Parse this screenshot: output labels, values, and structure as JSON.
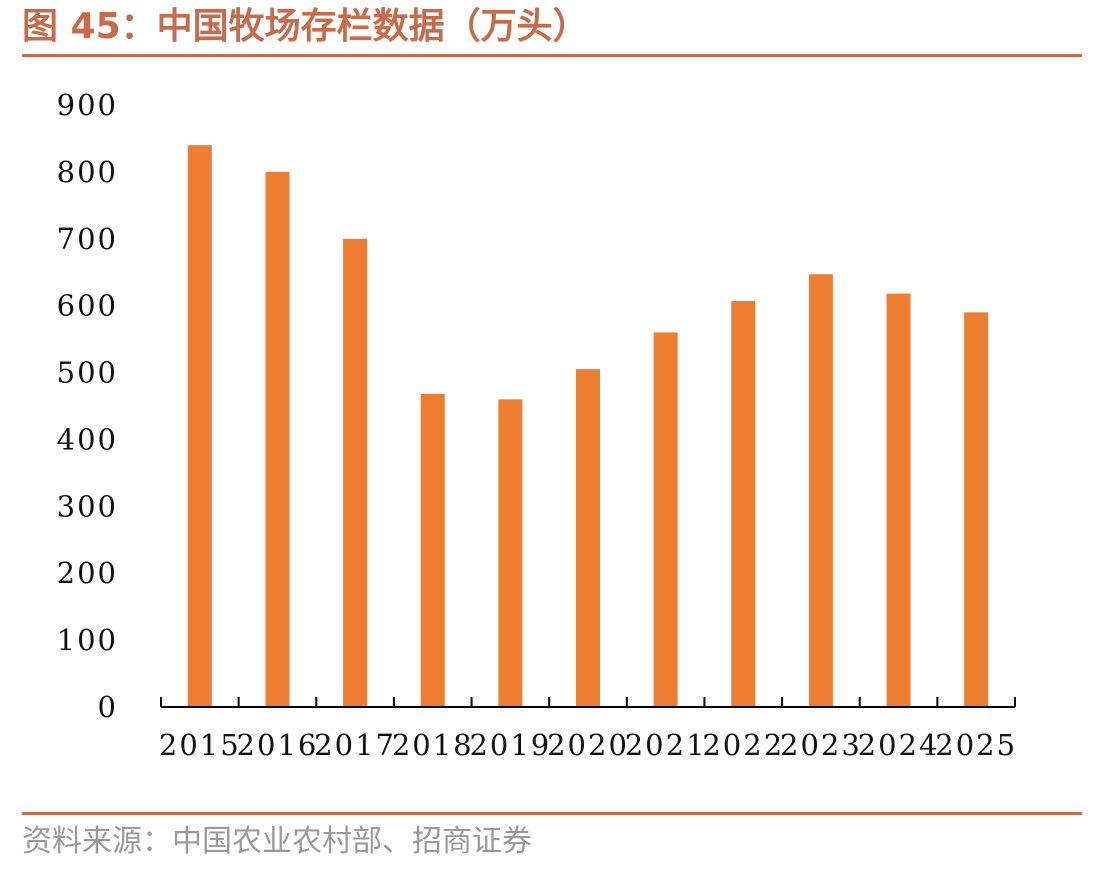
{
  "figure": {
    "title": "图 45：中国牧场存栏数据（万头）",
    "source": "资料来源：中国农业农村部、招商证券",
    "accent_color": "#C96B4A"
  },
  "chart_data": {
    "type": "bar",
    "categories": [
      "2015",
      "2016",
      "2017",
      "2018",
      "2019",
      "2020",
      "2021",
      "2022",
      "2023",
      "2024",
      "2025"
    ],
    "values": [
      840,
      800,
      700,
      468,
      460,
      505,
      560,
      607,
      647,
      618,
      590
    ],
    "title": "",
    "xlabel": "",
    "ylabel": "",
    "ylim": [
      0,
      900
    ],
    "yticks": [
      "0",
      "100",
      "200",
      "300",
      "400",
      "500",
      "600",
      "700",
      "800",
      "900"
    ],
    "bar_color": "#ED7D31",
    "grid": false,
    "legend": "none"
  }
}
